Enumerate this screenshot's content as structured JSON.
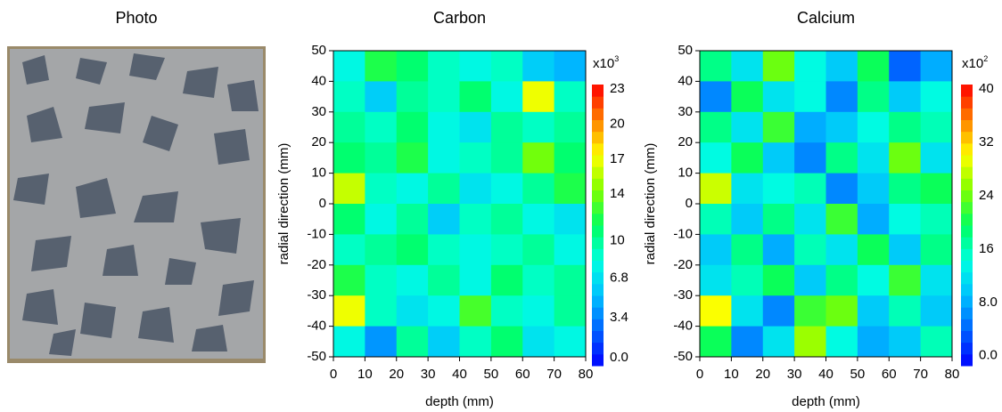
{
  "photo": {
    "title": "Photo"
  },
  "chart_data": [
    {
      "type": "heatmap",
      "title": "Carbon",
      "x_label": "depth (mm)",
      "y_label": "radial direction (mm)",
      "xlim": [
        0,
        80
      ],
      "ylim": [
        -50,
        50
      ],
      "xticks": [
        0,
        10,
        20,
        30,
        40,
        50,
        60,
        70,
        80
      ],
      "yticks": [
        50,
        40,
        30,
        20,
        10,
        0,
        -10,
        -20,
        -30,
        -40,
        -50
      ],
      "x": [
        5,
        15,
        25,
        35,
        45,
        55,
        65,
        75
      ],
      "y": [
        45,
        35,
        25,
        15,
        5,
        -5,
        -15,
        -25,
        -35,
        -45
      ],
      "values": [
        [
          8,
          12,
          11,
          9,
          8,
          9,
          6,
          5
        ],
        [
          9,
          6,
          10,
          9,
          11,
          8,
          17,
          9
        ],
        [
          10,
          9,
          11,
          8,
          7,
          10,
          9,
          10
        ],
        [
          11,
          10,
          12,
          8,
          9,
          10,
          14,
          11
        ],
        [
          16,
          9,
          8,
          10,
          7,
          8,
          10,
          12
        ],
        [
          11,
          8,
          10,
          6,
          9,
          10,
          8,
          7
        ],
        [
          9,
          10,
          11,
          9,
          8,
          9,
          10,
          8
        ],
        [
          12,
          9,
          8,
          10,
          8,
          11,
          9,
          10
        ],
        [
          17,
          9,
          7,
          8,
          13,
          9,
          8,
          10
        ],
        [
          8,
          4,
          10,
          6,
          9,
          11,
          7,
          8
        ]
      ],
      "colorbar": {
        "multiplier": "x10",
        "exponent": "3",
        "clim": [
          -0.7,
          23.4
        ],
        "ticks": [
          23,
          20,
          17,
          14,
          10,
          6.8,
          3.4,
          {
            "value": 0,
            "label": "0.0"
          }
        ]
      },
      "colormap": [
        "#0000ff",
        "#0060ff",
        "#00c0ff",
        "#00ffe0",
        "#00ff60",
        "#80ff00",
        "#ffff00",
        "#ff8000",
        "#ff0000"
      ]
    },
    {
      "type": "heatmap",
      "title": "Calcium",
      "x_label": "depth (mm)",
      "y_label": "radial direction (mm)",
      "xlim": [
        0,
        80
      ],
      "ylim": [
        -50,
        50
      ],
      "xticks": [
        0,
        10,
        20,
        30,
        40,
        50,
        60,
        70,
        80
      ],
      "yticks": [
        50,
        40,
        30,
        20,
        10,
        0,
        -10,
        -20,
        -30,
        -40,
        -50
      ],
      "x": [
        5,
        15,
        25,
        35,
        45,
        55,
        65,
        75
      ],
      "y": [
        45,
        35,
        25,
        15,
        5,
        -5,
        -15,
        -25,
        -35,
        -45
      ],
      "values": [
        [
          18,
          12,
          24,
          14,
          10,
          20,
          4,
          8
        ],
        [
          6,
          20,
          12,
          14,
          6,
          18,
          10,
          14
        ],
        [
          18,
          12,
          22,
          8,
          10,
          14,
          18,
          16
        ],
        [
          14,
          20,
          10,
          6,
          18,
          12,
          24,
          12
        ],
        [
          28,
          12,
          14,
          16,
          6,
          10,
          18,
          20
        ],
        [
          16,
          10,
          18,
          12,
          22,
          8,
          14,
          16
        ],
        [
          10,
          18,
          8,
          16,
          12,
          20,
          10,
          18
        ],
        [
          12,
          16,
          20,
          10,
          18,
          14,
          22,
          12
        ],
        [
          30,
          12,
          6,
          22,
          24,
          10,
          16,
          10
        ],
        [
          20,
          6,
          12,
          26,
          14,
          8,
          10,
          16
        ]
      ],
      "colorbar": {
        "multiplier": "x10",
        "exponent": "2",
        "clim": [
          -1.5,
          40.7
        ],
        "ticks": [
          40,
          32,
          24,
          16,
          {
            "value": 8,
            "label": "8.0"
          },
          {
            "value": 0,
            "label": "0.0"
          }
        ]
      },
      "colormap": [
        "#0000ff",
        "#0060ff",
        "#00c0ff",
        "#00ffe0",
        "#00ff60",
        "#80ff00",
        "#ffff00",
        "#ff8000",
        "#ff0000"
      ]
    }
  ]
}
